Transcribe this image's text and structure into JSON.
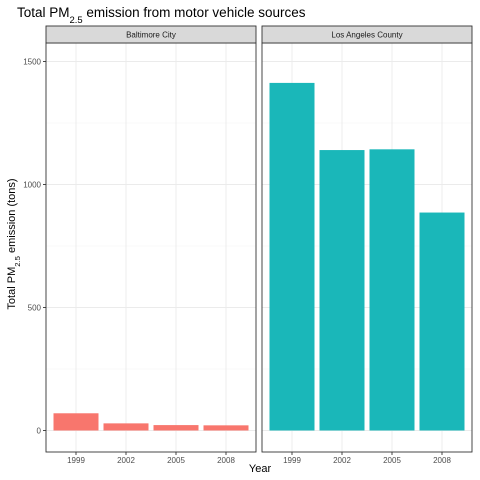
{
  "chart_data": {
    "type": "bar",
    "title": {
      "prefix": "Total PM",
      "subscript": "2.5",
      "suffix": " emission from motor vehicle sources"
    },
    "xlabel": "Year",
    "ylabel": {
      "prefix": "Total PM",
      "subscript": "2.5",
      "suffix": " emission (tons)"
    },
    "categories": [
      "1999",
      "2002",
      "2005",
      "2008"
    ],
    "ylim": [
      0,
      1600
    ],
    "yticks": [
      0,
      500,
      1000,
      1500
    ],
    "grid": true,
    "facets": [
      {
        "name": "Baltimore City",
        "color": "#f8766d",
        "values": [
          70,
          29,
          22,
          21
        ]
      },
      {
        "name": "Los Angeles County",
        "color": "#1ab7b9",
        "values": [
          1413,
          1140,
          1143,
          886
        ]
      }
    ]
  }
}
